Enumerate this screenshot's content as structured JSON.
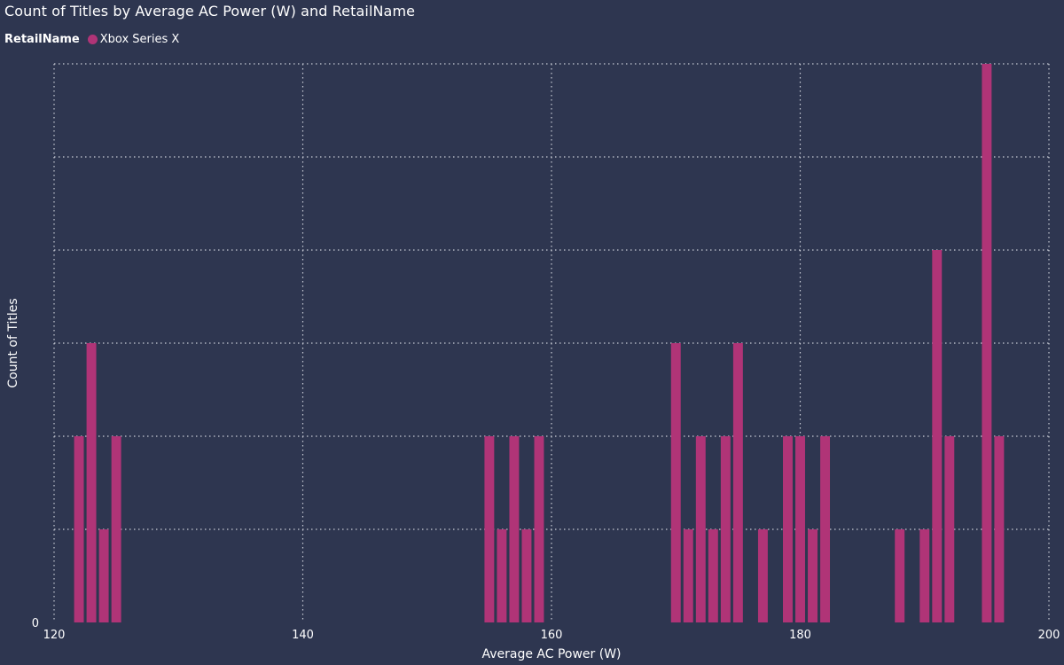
{
  "chart_data": {
    "type": "bar",
    "title": "Count of Titles by Average AC Power (W) and RetailName",
    "legend_title": "RetailName",
    "xlabel": "Average AC Power (W)",
    "ylabel": "Count of Titles",
    "xlim": [
      120,
      200
    ],
    "ylim": [
      0,
      6
    ],
    "x_ticks": [
      120,
      140,
      160,
      180,
      200
    ],
    "y_ticks_labeled": [
      0
    ],
    "grid": true,
    "legend_position": "top-left",
    "bar_color": "#b03477",
    "series": [
      {
        "name": "Xbox Series X",
        "points": [
          {
            "x": 122,
            "y": 2
          },
          {
            "x": 123,
            "y": 3
          },
          {
            "x": 124,
            "y": 1
          },
          {
            "x": 125,
            "y": 2
          },
          {
            "x": 155,
            "y": 2
          },
          {
            "x": 156,
            "y": 1
          },
          {
            "x": 157,
            "y": 2
          },
          {
            "x": 158,
            "y": 1
          },
          {
            "x": 159,
            "y": 2
          },
          {
            "x": 170,
            "y": 3
          },
          {
            "x": 171,
            "y": 1
          },
          {
            "x": 172,
            "y": 2
          },
          {
            "x": 173,
            "y": 1
          },
          {
            "x": 174,
            "y": 2
          },
          {
            "x": 175,
            "y": 3
          },
          {
            "x": 177,
            "y": 1
          },
          {
            "x": 179,
            "y": 2
          },
          {
            "x": 180,
            "y": 2
          },
          {
            "x": 181,
            "y": 1
          },
          {
            "x": 182,
            "y": 2
          },
          {
            "x": 188,
            "y": 1
          },
          {
            "x": 190,
            "y": 1
          },
          {
            "x": 191,
            "y": 4
          },
          {
            "x": 192,
            "y": 2
          },
          {
            "x": 195,
            "y": 6
          },
          {
            "x": 196,
            "y": 2
          }
        ]
      }
    ]
  }
}
